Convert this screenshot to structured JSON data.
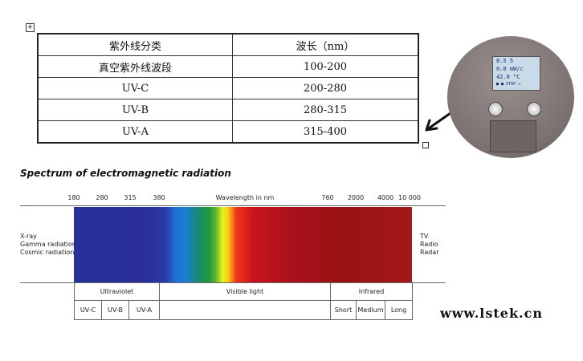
{
  "table": {
    "header": [
      "紫外线分类",
      "波长（nm）"
    ],
    "rows": [
      [
        "真空紫外线波段",
        "100-200"
      ],
      [
        "UV-C",
        "200-280"
      ],
      [
        "UV-B",
        "280-315"
      ],
      [
        "UV-A",
        "315-400"
      ]
    ]
  },
  "spectrum": {
    "title": "Spectrum of electromagnetic radiation",
    "ticks": [
      "180",
      "280",
      "315",
      "380",
      "Wavelength in nm",
      "760",
      "2000",
      "4000",
      "10 000"
    ],
    "left_labels": [
      "X-ray",
      "Gamma radiation",
      "Cosmic radiation"
    ],
    "right_labels": [
      "TV",
      "Radio",
      "Radar"
    ],
    "bands": [
      "Ultraviolet",
      "Visible light",
      "Infrared"
    ],
    "subbands": [
      "UV-C",
      "UV-B",
      "UV-A",
      "Short",
      "Medium",
      "Long"
    ]
  },
  "device": {
    "screen": [
      "8.5  5",
      "0.0  mW/c",
      "42.0  °C",
      "■ ■ STOP  ▭"
    ]
  },
  "watermark": "www.lstek.cn"
}
